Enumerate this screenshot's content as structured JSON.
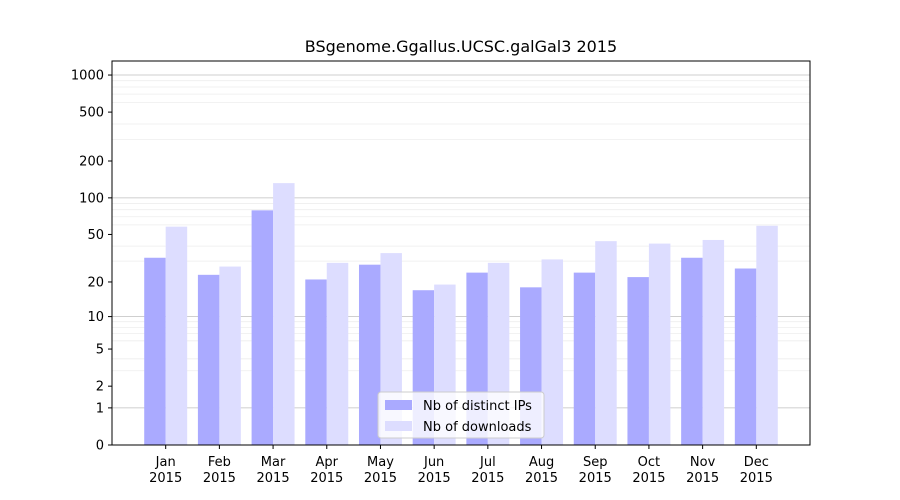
{
  "chart_data": {
    "type": "bar",
    "title": "BSgenome.Ggallus.UCSC.galGal3 2015",
    "xlabel": "",
    "ylabel": "",
    "y_scale": "log(1+y)",
    "ylim": [
      0,
      1300
    ],
    "y_ticks": [
      0,
      1,
      2,
      5,
      10,
      20,
      50,
      100,
      200,
      500,
      1000
    ],
    "grid": "horizontal",
    "categories": [
      [
        "Jan",
        "2015"
      ],
      [
        "Feb",
        "2015"
      ],
      [
        "Mar",
        "2015"
      ],
      [
        "Apr",
        "2015"
      ],
      [
        "May",
        "2015"
      ],
      [
        "Jun",
        "2015"
      ],
      [
        "Jul",
        "2015"
      ],
      [
        "Aug",
        "2015"
      ],
      [
        "Sep",
        "2015"
      ],
      [
        "Oct",
        "2015"
      ],
      [
        "Nov",
        "2015"
      ],
      [
        "Dec",
        "2015"
      ]
    ],
    "series": [
      {
        "name": "Nb of distinct IPs",
        "color": "#aaaaff",
        "values": [
          32,
          23,
          79,
          21,
          28,
          17,
          24,
          18,
          24,
          22,
          32,
          26
        ]
      },
      {
        "name": "Nb of downloads",
        "color": "#ddddff",
        "values": [
          58,
          27,
          132,
          29,
          35,
          19,
          29,
          31,
          44,
          42,
          45,
          59
        ]
      }
    ],
    "legend_position": "bottom-center"
  }
}
